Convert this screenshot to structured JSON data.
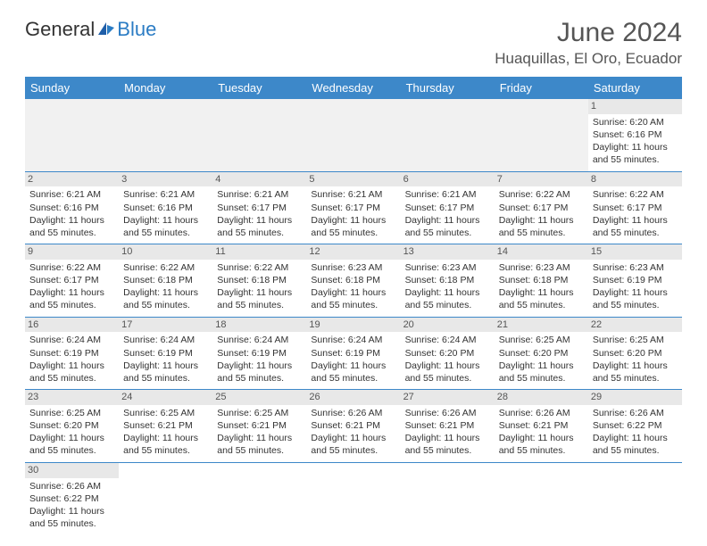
{
  "logo": {
    "text1": "General",
    "text2": "Blue"
  },
  "title": "June 2024",
  "location": "Huaquillas, El Oro, Ecuador",
  "colors": {
    "headerbg": "#3d88c9",
    "accent": "#2b7cc4"
  },
  "dayHeaders": [
    "Sunday",
    "Monday",
    "Tuesday",
    "Wednesday",
    "Thursday",
    "Friday",
    "Saturday"
  ],
  "weeks": [
    [
      null,
      null,
      null,
      null,
      null,
      null,
      {
        "num": "1",
        "sunrise": "Sunrise: 6:20 AM",
        "sunset": "Sunset: 6:16 PM",
        "daylight": "Daylight: 11 hours and 55 minutes."
      }
    ],
    [
      {
        "num": "2",
        "sunrise": "Sunrise: 6:21 AM",
        "sunset": "Sunset: 6:16 PM",
        "daylight": "Daylight: 11 hours and 55 minutes."
      },
      {
        "num": "3",
        "sunrise": "Sunrise: 6:21 AM",
        "sunset": "Sunset: 6:16 PM",
        "daylight": "Daylight: 11 hours and 55 minutes."
      },
      {
        "num": "4",
        "sunrise": "Sunrise: 6:21 AM",
        "sunset": "Sunset: 6:17 PM",
        "daylight": "Daylight: 11 hours and 55 minutes."
      },
      {
        "num": "5",
        "sunrise": "Sunrise: 6:21 AM",
        "sunset": "Sunset: 6:17 PM",
        "daylight": "Daylight: 11 hours and 55 minutes."
      },
      {
        "num": "6",
        "sunrise": "Sunrise: 6:21 AM",
        "sunset": "Sunset: 6:17 PM",
        "daylight": "Daylight: 11 hours and 55 minutes."
      },
      {
        "num": "7",
        "sunrise": "Sunrise: 6:22 AM",
        "sunset": "Sunset: 6:17 PM",
        "daylight": "Daylight: 11 hours and 55 minutes."
      },
      {
        "num": "8",
        "sunrise": "Sunrise: 6:22 AM",
        "sunset": "Sunset: 6:17 PM",
        "daylight": "Daylight: 11 hours and 55 minutes."
      }
    ],
    [
      {
        "num": "9",
        "sunrise": "Sunrise: 6:22 AM",
        "sunset": "Sunset: 6:17 PM",
        "daylight": "Daylight: 11 hours and 55 minutes."
      },
      {
        "num": "10",
        "sunrise": "Sunrise: 6:22 AM",
        "sunset": "Sunset: 6:18 PM",
        "daylight": "Daylight: 11 hours and 55 minutes."
      },
      {
        "num": "11",
        "sunrise": "Sunrise: 6:22 AM",
        "sunset": "Sunset: 6:18 PM",
        "daylight": "Daylight: 11 hours and 55 minutes."
      },
      {
        "num": "12",
        "sunrise": "Sunrise: 6:23 AM",
        "sunset": "Sunset: 6:18 PM",
        "daylight": "Daylight: 11 hours and 55 minutes."
      },
      {
        "num": "13",
        "sunrise": "Sunrise: 6:23 AM",
        "sunset": "Sunset: 6:18 PM",
        "daylight": "Daylight: 11 hours and 55 minutes."
      },
      {
        "num": "14",
        "sunrise": "Sunrise: 6:23 AM",
        "sunset": "Sunset: 6:18 PM",
        "daylight": "Daylight: 11 hours and 55 minutes."
      },
      {
        "num": "15",
        "sunrise": "Sunrise: 6:23 AM",
        "sunset": "Sunset: 6:19 PM",
        "daylight": "Daylight: 11 hours and 55 minutes."
      }
    ],
    [
      {
        "num": "16",
        "sunrise": "Sunrise: 6:24 AM",
        "sunset": "Sunset: 6:19 PM",
        "daylight": "Daylight: 11 hours and 55 minutes."
      },
      {
        "num": "17",
        "sunrise": "Sunrise: 6:24 AM",
        "sunset": "Sunset: 6:19 PM",
        "daylight": "Daylight: 11 hours and 55 minutes."
      },
      {
        "num": "18",
        "sunrise": "Sunrise: 6:24 AM",
        "sunset": "Sunset: 6:19 PM",
        "daylight": "Daylight: 11 hours and 55 minutes."
      },
      {
        "num": "19",
        "sunrise": "Sunrise: 6:24 AM",
        "sunset": "Sunset: 6:19 PM",
        "daylight": "Daylight: 11 hours and 55 minutes."
      },
      {
        "num": "20",
        "sunrise": "Sunrise: 6:24 AM",
        "sunset": "Sunset: 6:20 PM",
        "daylight": "Daylight: 11 hours and 55 minutes."
      },
      {
        "num": "21",
        "sunrise": "Sunrise: 6:25 AM",
        "sunset": "Sunset: 6:20 PM",
        "daylight": "Daylight: 11 hours and 55 minutes."
      },
      {
        "num": "22",
        "sunrise": "Sunrise: 6:25 AM",
        "sunset": "Sunset: 6:20 PM",
        "daylight": "Daylight: 11 hours and 55 minutes."
      }
    ],
    [
      {
        "num": "23",
        "sunrise": "Sunrise: 6:25 AM",
        "sunset": "Sunset: 6:20 PM",
        "daylight": "Daylight: 11 hours and 55 minutes."
      },
      {
        "num": "24",
        "sunrise": "Sunrise: 6:25 AM",
        "sunset": "Sunset: 6:21 PM",
        "daylight": "Daylight: 11 hours and 55 minutes."
      },
      {
        "num": "25",
        "sunrise": "Sunrise: 6:25 AM",
        "sunset": "Sunset: 6:21 PM",
        "daylight": "Daylight: 11 hours and 55 minutes."
      },
      {
        "num": "26",
        "sunrise": "Sunrise: 6:26 AM",
        "sunset": "Sunset: 6:21 PM",
        "daylight": "Daylight: 11 hours and 55 minutes."
      },
      {
        "num": "27",
        "sunrise": "Sunrise: 6:26 AM",
        "sunset": "Sunset: 6:21 PM",
        "daylight": "Daylight: 11 hours and 55 minutes."
      },
      {
        "num": "28",
        "sunrise": "Sunrise: 6:26 AM",
        "sunset": "Sunset: 6:21 PM",
        "daylight": "Daylight: 11 hours and 55 minutes."
      },
      {
        "num": "29",
        "sunrise": "Sunrise: 6:26 AM",
        "sunset": "Sunset: 6:22 PM",
        "daylight": "Daylight: 11 hours and 55 minutes."
      }
    ],
    [
      {
        "num": "30",
        "sunrise": "Sunrise: 6:26 AM",
        "sunset": "Sunset: 6:22 PM",
        "daylight": "Daylight: 11 hours and 55 minutes."
      },
      null,
      null,
      null,
      null,
      null,
      null
    ]
  ]
}
